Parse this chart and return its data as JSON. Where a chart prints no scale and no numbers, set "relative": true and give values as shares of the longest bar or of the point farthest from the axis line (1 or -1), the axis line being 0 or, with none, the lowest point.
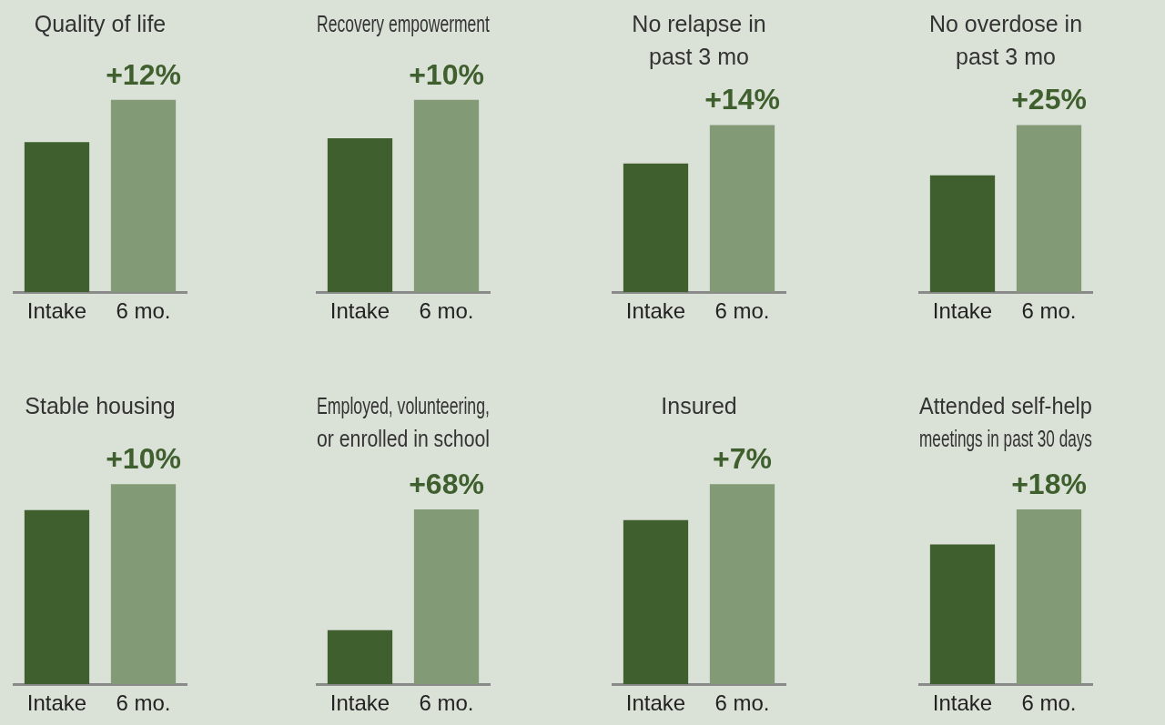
{
  "chart_data": [
    {
      "type": "bar",
      "title": "Quality of life",
      "categories": [
        "Intake",
        "6 mo."
      ],
      "values": [
        0.78,
        1
      ],
      "colors": [
        "#3f5f2e",
        "#839a76"
      ],
      "relative": true,
      "annotations": [
        {
          "text": "+12%",
          "x": "6 mo.",
          "y": 1
        }
      ]
    },
    {
      "type": "bar",
      "title": "Recovery empowerment",
      "categories": [
        "Intake",
        "6 mo."
      ],
      "values": [
        0.8,
        1
      ],
      "colors": [
        "#3f5f2e",
        "#839a76"
      ],
      "relative": true,
      "annotations": [
        {
          "text": "+10%",
          "x": "6 mo.",
          "y": 1
        }
      ]
    },
    {
      "type": "bar",
      "title": "No relapse in\npast 3 mo",
      "categories": [
        "Intake",
        "6 mo."
      ],
      "values": [
        0.77,
        1
      ],
      "colors": [
        "#3f5f2e",
        "#839a76"
      ],
      "relative": true,
      "annotations": [
        {
          "text": "+14%",
          "x": "6 mo.",
          "y": 1
        }
      ]
    },
    {
      "type": "bar",
      "title": "No overdose in\npast 3 mo",
      "categories": [
        "Intake",
        "6 mo."
      ],
      "values": [
        0.7,
        1
      ],
      "colors": [
        "#3f5f2e",
        "#839a76"
      ],
      "relative": true,
      "annotations": [
        {
          "text": "+25%",
          "x": "6 mo.",
          "y": 1
        }
      ]
    },
    {
      "type": "bar",
      "title": "Stable housing",
      "categories": [
        "Intake",
        "6 mo."
      ],
      "values": [
        0.87,
        1
      ],
      "colors": [
        "#3f5f2e",
        "#839a76"
      ],
      "relative": true,
      "annotations": [
        {
          "text": "+10%",
          "x": "6 mo.",
          "y": 1
        }
      ]
    },
    {
      "type": "bar",
      "title": "Employed, volunteering,\nor enrolled in school",
      "categories": [
        "Intake",
        "6 mo."
      ],
      "values": [
        0.31,
        1
      ],
      "colors": [
        "#3f5f2e",
        "#839a76"
      ],
      "relative": true,
      "annotations": [
        {
          "text": "+68%",
          "x": "6 mo.",
          "y": 1
        }
      ]
    },
    {
      "type": "bar",
      "title": "Insured",
      "categories": [
        "Intake",
        "6 mo."
      ],
      "values": [
        0.82,
        1
      ],
      "colors": [
        "#3f5f2e",
        "#839a76"
      ],
      "relative": true,
      "annotations": [
        {
          "text": "+7%",
          "x": "6 mo.",
          "y": 1
        }
      ]
    },
    {
      "type": "bar",
      "title": "Attended self-help\nmeetings in past 30 days",
      "categories": [
        "Intake",
        "6 mo."
      ],
      "values": [
        0.8,
        1
      ],
      "colors": [
        "#3f5f2e",
        "#839a76"
      ],
      "relative": true,
      "annotations": [
        {
          "text": "+18%",
          "x": "6 mo.",
          "y": 1
        }
      ]
    }
  ]
}
